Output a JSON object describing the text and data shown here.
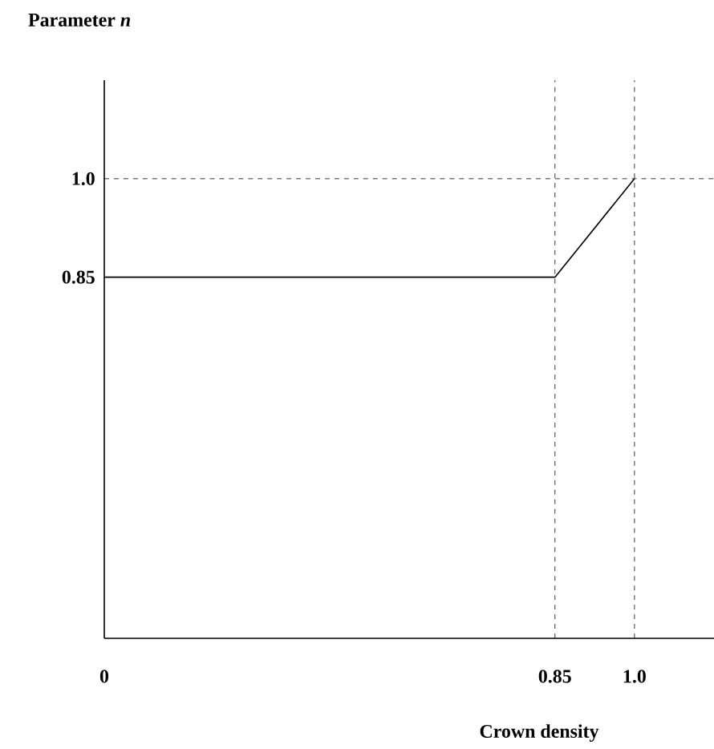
{
  "chart_data": {
    "type": "line",
    "ylabel": "Parameter *n*",
    "xlabel": "Crown density",
    "x": [
      0,
      0.85,
      1.0
    ],
    "series": [
      {
        "color": "#000000",
        "values": [
          0.85,
          0.85,
          1.0
        ]
      }
    ],
    "xlim": [
      0,
      1.15
    ],
    "ylim": [
      0.3,
      1.15
    ],
    "xticks": [
      0,
      0.85,
      {
        "value": 1.0,
        "label": "1.0"
      }
    ],
    "yticks": [
      0.85,
      {
        "value": 1.0,
        "label": "1.0"
      }
    ],
    "ref_lines": [
      {
        "axis": "x",
        "value": 0.85,
        "line_style": "dashed"
      },
      {
        "axis": "x",
        "value": 1.0,
        "line_style": "dashed"
      },
      {
        "axis": "y",
        "value": 1.0,
        "line_style": "dashed"
      }
    ],
    "marker": "none",
    "line_style": "solid"
  }
}
